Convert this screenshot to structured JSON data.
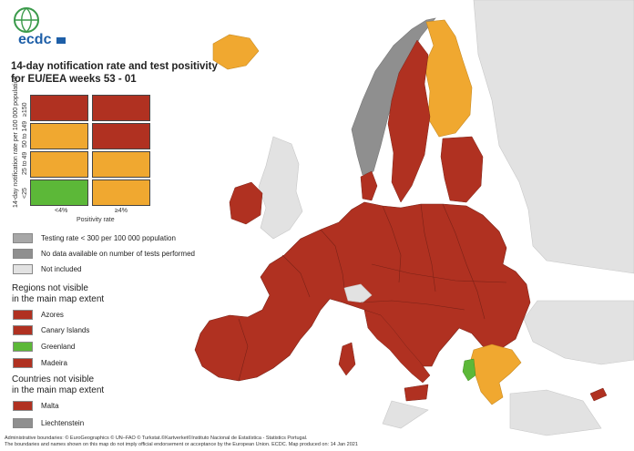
{
  "logo": {
    "text": "ecdc",
    "subtitle": "EUROPEAN CENTRE FOR DISEASE PREVENTION AND CONTROL"
  },
  "title": {
    "line1": "14-day notification rate and test positivity",
    "line2": "for EU/EEA weeks 53 - 01"
  },
  "matrix": {
    "y_axis_label": "14-day notification rate per 100 000 population",
    "x_axis_label": "Positivity rate",
    "row_labels": [
      "≥150",
      "50 to 149",
      "25 to 49",
      "<25"
    ],
    "col_labels": [
      "<4%",
      "≥4%"
    ],
    "colors": [
      [
        "#b03121",
        "#b03121"
      ],
      [
        "#f0a830",
        "#b03121"
      ],
      [
        "#f0a830",
        "#f0a830"
      ],
      [
        "#5cb838",
        "#f0a830"
      ]
    ]
  },
  "legend": [
    {
      "label": "Testing rate < 300 per 100 000 population",
      "color": "#a7a7a7"
    },
    {
      "label": "No data available on number of tests performed",
      "color": "#8f8f8f"
    },
    {
      "label": "Not included",
      "color": "#e2e2e2"
    }
  ],
  "regions": {
    "heading_line1": "Regions not visible",
    "heading_line2": "in the main map extent",
    "items": [
      {
        "label": "Azores",
        "color": "#b03121"
      },
      {
        "label": "Canary Islands",
        "color": "#b03121"
      },
      {
        "label": "Greenland",
        "color": "#5cb838"
      },
      {
        "label": "Madeira",
        "color": "#b03121"
      }
    ]
  },
  "countries": {
    "heading_line1": "Countries not visible",
    "heading_line2": "in the main map extent",
    "items": [
      {
        "label": "Malta",
        "color": "#b03121"
      },
      {
        "label": "Liechtenstein",
        "color": "#8f8f8f"
      }
    ]
  },
  "footer": {
    "line1": "Administrative boundaries: © EuroGeographics © UN–FAO © Turkstat.©Kartverket©Instituto Nacional de Estatística - Statistics Portugal.",
    "line2": "The boundaries and names shown on this map do not imply official endorsement or acceptance by the European Union. ECDC. Map produced on: 14 Jan 2021"
  },
  "map_colors": {
    "red": "#b03121",
    "orange": "#f0a830",
    "green": "#5cb838",
    "gray": "#8f8f8f",
    "not_included": "#e2e2e2",
    "sea": "#ffffff"
  }
}
